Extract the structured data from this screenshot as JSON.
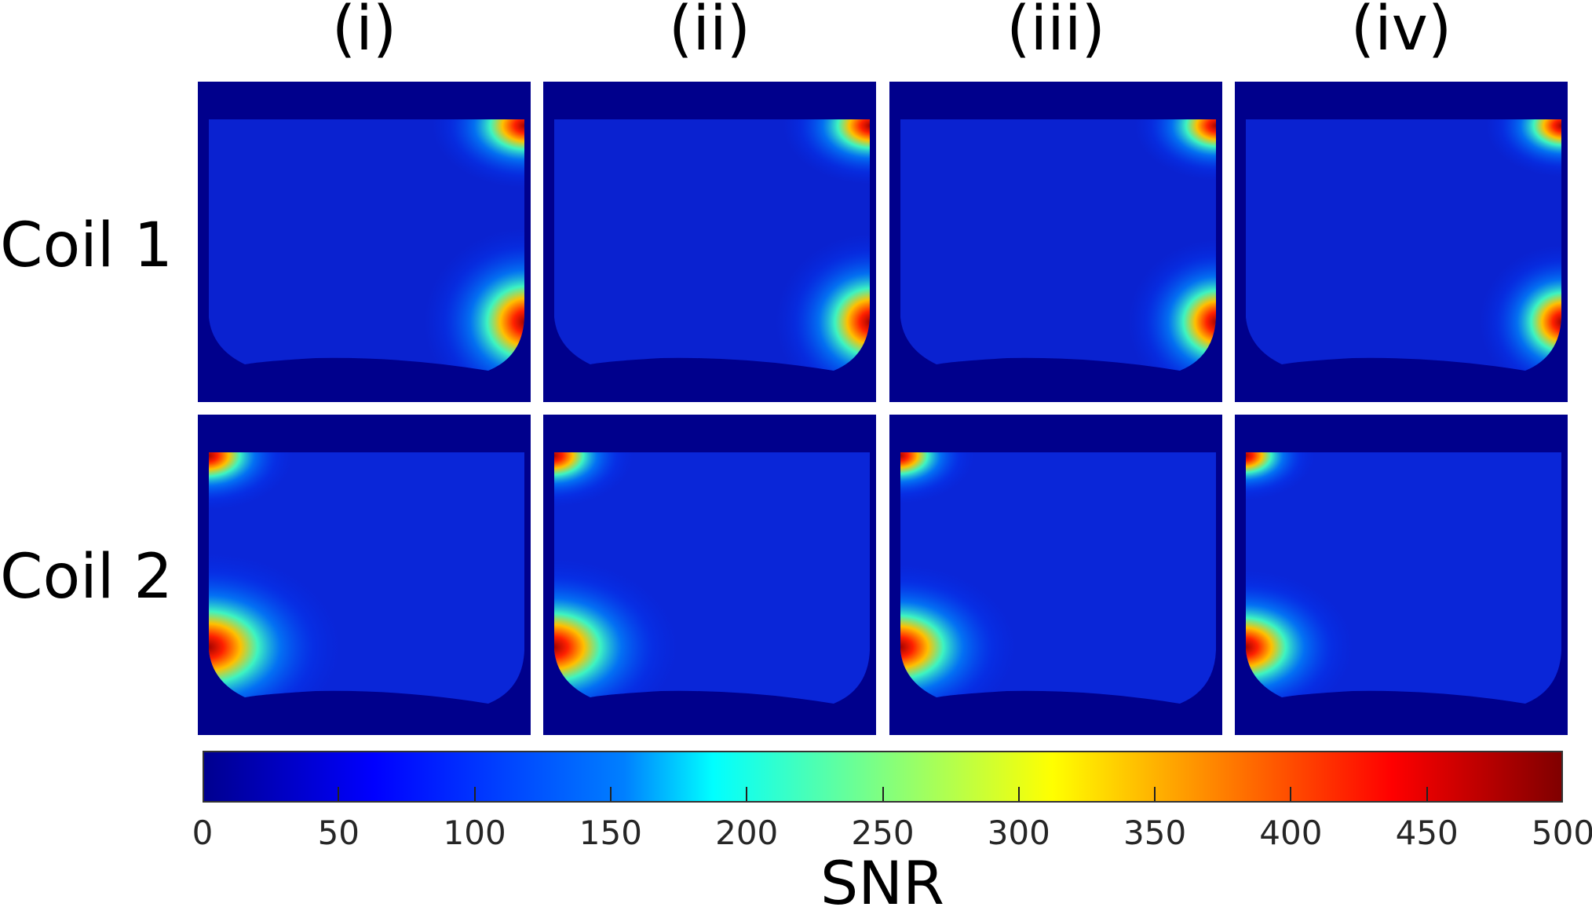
{
  "columns": [
    "(i)",
    "(ii)",
    "(iii)",
    "(iv)"
  ],
  "rows": [
    "Coil 1",
    "Coil 2"
  ],
  "colorbar": {
    "label": "SNR",
    "colormap": "jet",
    "min": 0,
    "max": 500,
    "ticks": [
      "0",
      "50",
      "100",
      "150",
      "200",
      "250",
      "300",
      "350",
      "400",
      "450",
      "500"
    ]
  },
  "colors": {
    "background": "#00008c",
    "body": "#0022d8",
    "hot": "#a00000"
  }
}
